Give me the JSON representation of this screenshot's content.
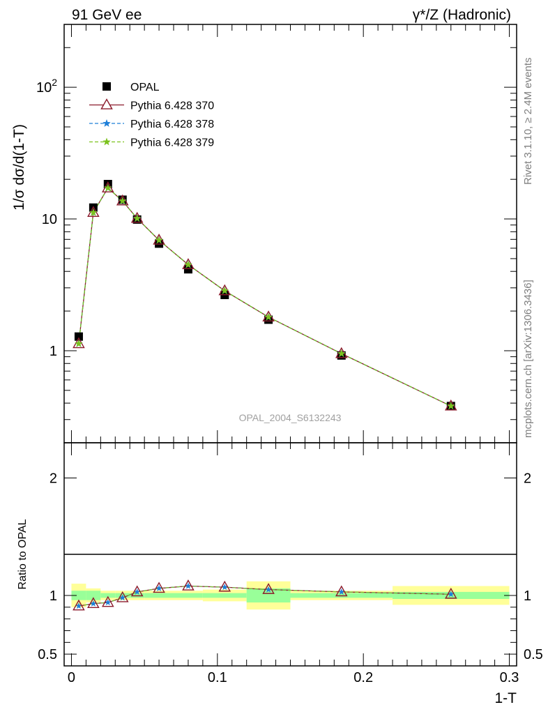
{
  "header": {
    "left": "91 GeV ee",
    "right": "γ*/Z (Hadronic)"
  },
  "side_labels": {
    "rivet": "Rivet 3.1.10, ≥ 2.4M events",
    "source": "mcplots.cern.ch [arXiv:1306.3436]"
  },
  "watermark": "OPAL_2004_S6132243",
  "main_panel": {
    "ylabel": "1/σ dσ/d(1-T)",
    "yscale": "log",
    "ylim": [
      0.2,
      300
    ],
    "ytick_labels": [
      "1",
      "10",
      "10^2"
    ]
  },
  "ratio_panel": {
    "ylabel": "Ratio to OPAL",
    "ylim": [
      0.4,
      2.3
    ],
    "ytick_labels": [
      "0.5",
      "1",
      "2"
    ]
  },
  "xaxis": {
    "label": "1-T",
    "xlim": [
      -0.005,
      0.305
    ],
    "tick_labels": [
      "0",
      "0.1",
      "0.2",
      "0.3"
    ]
  },
  "legend": [
    {
      "label": "OPAL",
      "color": "#000000",
      "marker": "square"
    },
    {
      "label": "Pythia 6.428 370",
      "color": "#8b1a2b",
      "marker": "triangle"
    },
    {
      "label": "Pythia 6.428 378",
      "color": "#1e7fd8",
      "marker": "star"
    },
    {
      "label": "Pythia 6.428 379",
      "color": "#7cc21e",
      "marker": "star"
    }
  ],
  "chart_data": {
    "type": "line",
    "x": [
      0.005,
      0.015,
      0.025,
      0.035,
      0.045,
      0.06,
      0.08,
      0.105,
      0.135,
      0.185,
      0.26
    ],
    "bin_edges": [
      0.0,
      0.01,
      0.02,
      0.03,
      0.04,
      0.05,
      0.07,
      0.09,
      0.12,
      0.15,
      0.22,
      0.3
    ],
    "series": [
      {
        "name": "OPAL",
        "values": [
          1.28,
          12.2,
          18.4,
          14.0,
          9.9,
          6.5,
          4.15,
          2.65,
          1.72,
          0.92,
          0.38
        ]
      },
      {
        "name": "Pythia 6.428 370",
        "values": [
          1.13,
          11.2,
          17.2,
          13.7,
          10.1,
          6.9,
          4.5,
          2.85,
          1.8,
          0.95,
          0.38
        ]
      },
      {
        "name": "Pythia 6.428 378",
        "values": [
          1.13,
          11.2,
          17.2,
          13.7,
          10.1,
          6.9,
          4.5,
          2.85,
          1.8,
          0.95,
          0.38
        ]
      },
      {
        "name": "Pythia 6.428 379",
        "values": [
          1.13,
          11.2,
          17.2,
          13.7,
          10.1,
          6.9,
          4.5,
          2.85,
          1.8,
          0.95,
          0.38
        ]
      }
    ],
    "ratio": {
      "values": [
        0.91,
        0.93,
        0.94,
        0.98,
        1.03,
        1.06,
        1.08,
        1.07,
        1.05,
        1.03,
        1.01
      ],
      "band_stat": [
        0.04,
        0.04,
        0.02,
        0.02,
        0.02,
        0.02,
        0.02,
        0.02,
        0.06,
        0.02,
        0.03
      ],
      "band_total": [
        0.1,
        0.06,
        0.04,
        0.04,
        0.04,
        0.04,
        0.04,
        0.05,
        0.12,
        0.04,
        0.08
      ]
    }
  }
}
